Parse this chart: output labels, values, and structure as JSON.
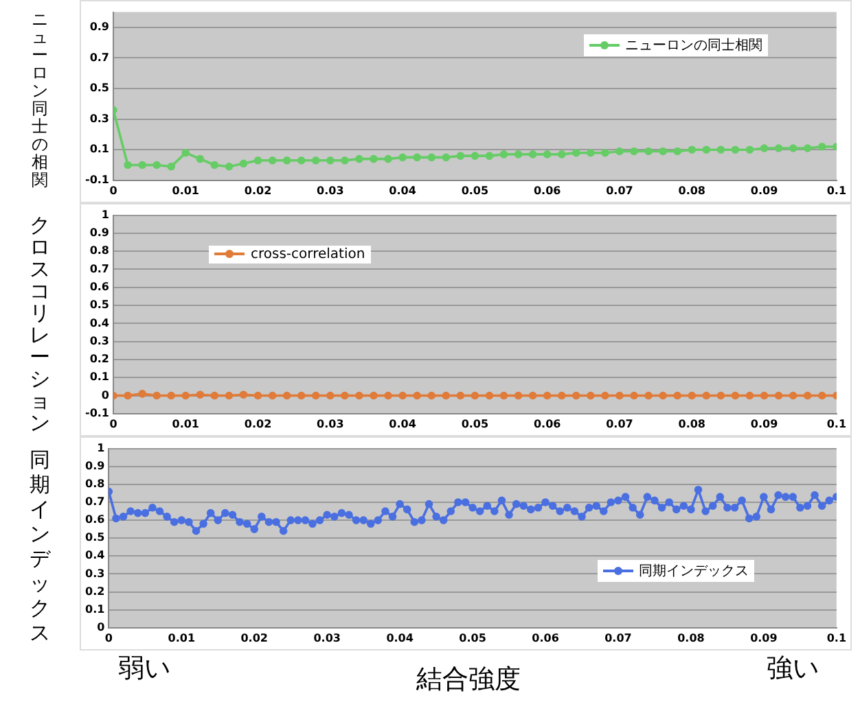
{
  "chart_data": [
    {
      "type": "line",
      "ylabel": "ニューロン同士の相関",
      "legend": "top right",
      "marker": "circle",
      "grid": "y",
      "x": [
        0,
        0.002,
        0.004,
        0.006,
        0.008,
        0.01,
        0.012,
        0.014,
        0.016,
        0.018,
        0.02,
        0.022,
        0.024,
        0.026,
        0.028,
        0.03,
        0.032,
        0.034,
        0.036,
        0.038,
        0.04,
        0.042,
        0.044,
        0.046,
        0.048,
        0.05,
        0.052,
        0.054,
        0.056,
        0.058,
        0.06,
        0.062,
        0.064,
        0.066,
        0.068,
        0.07,
        0.072,
        0.074,
        0.076,
        0.078,
        0.08,
        0.082,
        0.084,
        0.086,
        0.088,
        0.09,
        0.092,
        0.094,
        0.096,
        0.098,
        0.1
      ],
      "series": [
        {
          "name": "ニューロンの同士相関",
          "color": "#66cc66",
          "values": [
            0.36,
            0.0,
            0.0,
            0.0,
            -0.01,
            0.08,
            0.04,
            0.0,
            -0.01,
            0.01,
            0.03,
            0.03,
            0.03,
            0.03,
            0.03,
            0.03,
            0.03,
            0.04,
            0.04,
            0.04,
            0.05,
            0.05,
            0.05,
            0.05,
            0.06,
            0.06,
            0.06,
            0.07,
            0.07,
            0.07,
            0.07,
            0.07,
            0.08,
            0.08,
            0.08,
            0.09,
            0.09,
            0.09,
            0.09,
            0.09,
            0.1,
            0.1,
            0.1,
            0.1,
            0.1,
            0.11,
            0.11,
            0.11,
            0.11,
            0.12,
            0.12
          ]
        }
      ],
      "xlim": [
        0,
        0.1
      ],
      "xticks": [
        0,
        0.01,
        0.02,
        0.03,
        0.04,
        0.05,
        0.06,
        0.07,
        0.08,
        0.09,
        0.1
      ],
      "ylim": [
        -0.1,
        1.0
      ],
      "yticks": [
        -0.1,
        0.1,
        0.3,
        0.5,
        0.7,
        0.9
      ]
    },
    {
      "type": "line",
      "ylabel": "クロスコリレーション",
      "legend": "top left",
      "marker": "circle",
      "grid": "y",
      "x": [
        0,
        0.002,
        0.004,
        0.006,
        0.008,
        0.01,
        0.012,
        0.014,
        0.016,
        0.018,
        0.02,
        0.022,
        0.024,
        0.026,
        0.028,
        0.03,
        0.032,
        0.034,
        0.036,
        0.038,
        0.04,
        0.042,
        0.044,
        0.046,
        0.048,
        0.05,
        0.052,
        0.054,
        0.056,
        0.058,
        0.06,
        0.062,
        0.064,
        0.066,
        0.068,
        0.07,
        0.072,
        0.074,
        0.076,
        0.078,
        0.08,
        0.082,
        0.084,
        0.086,
        0.088,
        0.09,
        0.092,
        0.094,
        0.096,
        0.098,
        0.1
      ],
      "series": [
        {
          "name": "cross-correlation",
          "color": "#e07b39",
          "values": [
            0,
            0,
            0.01,
            0,
            0,
            0,
            0.005,
            0,
            0,
            0.005,
            0,
            0,
            0,
            0,
            0,
            0,
            0,
            0,
            0,
            0,
            0,
            0,
            0,
            0,
            0,
            0,
            0,
            0,
            0,
            0,
            0,
            0,
            0,
            0,
            0,
            0,
            0,
            0,
            0,
            0,
            0,
            0,
            0,
            0,
            0,
            0,
            0,
            0,
            0,
            0,
            0
          ]
        }
      ],
      "xlim": [
        0,
        0.1
      ],
      "xticks": [
        0,
        0.01,
        0.02,
        0.03,
        0.04,
        0.05,
        0.06,
        0.07,
        0.08,
        0.09,
        0.1
      ],
      "ylim": [
        -0.1,
        1
      ],
      "yticks": [
        -0.1,
        0,
        0.1,
        0.2,
        0.3,
        0.4,
        0.5,
        0.6,
        0.7,
        0.8,
        0.9,
        1
      ]
    },
    {
      "type": "line",
      "ylabel": "同期インデックス",
      "xlabel": "結合強度",
      "annotations": [
        "弱い",
        "強い"
      ],
      "legend": "right",
      "marker": "circle",
      "grid": "y",
      "x": [
        0,
        0.001,
        0.002,
        0.003,
        0.004,
        0.005,
        0.006,
        0.007,
        0.008,
        0.009,
        0.01,
        0.011,
        0.012,
        0.013,
        0.014,
        0.015,
        0.016,
        0.017,
        0.018,
        0.019,
        0.02,
        0.021,
        0.022,
        0.023,
        0.024,
        0.025,
        0.026,
        0.027,
        0.028,
        0.029,
        0.03,
        0.031,
        0.032,
        0.033,
        0.034,
        0.035,
        0.036,
        0.037,
        0.038,
        0.039,
        0.04,
        0.041,
        0.042,
        0.043,
        0.044,
        0.045,
        0.046,
        0.047,
        0.048,
        0.049,
        0.05,
        0.051,
        0.052,
        0.053,
        0.054,
        0.055,
        0.056,
        0.057,
        0.058,
        0.059,
        0.06,
        0.061,
        0.062,
        0.063,
        0.064,
        0.065,
        0.066,
        0.067,
        0.068,
        0.069,
        0.07,
        0.071,
        0.072,
        0.073,
        0.074,
        0.075,
        0.076,
        0.077,
        0.078,
        0.079,
        0.08,
        0.081,
        0.082,
        0.083,
        0.084,
        0.085,
        0.086,
        0.087,
        0.088,
        0.089,
        0.09,
        0.091,
        0.092,
        0.093,
        0.094,
        0.095,
        0.096,
        0.097,
        0.098,
        0.099,
        0.1
      ],
      "series": [
        {
          "name": "同期インデックス",
          "color": "#4a6fe0",
          "values": [
            0.76,
            0.61,
            0.62,
            0.65,
            0.64,
            0.64,
            0.67,
            0.65,
            0.62,
            0.59,
            0.6,
            0.59,
            0.54,
            0.58,
            0.64,
            0.6,
            0.64,
            0.63,
            0.59,
            0.58,
            0.55,
            0.62,
            0.59,
            0.59,
            0.54,
            0.6,
            0.6,
            0.6,
            0.58,
            0.6,
            0.63,
            0.62,
            0.64,
            0.63,
            0.6,
            0.6,
            0.58,
            0.6,
            0.65,
            0.62,
            0.69,
            0.66,
            0.59,
            0.6,
            0.69,
            0.62,
            0.6,
            0.65,
            0.7,
            0.7,
            0.67,
            0.65,
            0.68,
            0.65,
            0.71,
            0.63,
            0.69,
            0.68,
            0.66,
            0.67,
            0.7,
            0.68,
            0.65,
            0.67,
            0.65,
            0.62,
            0.67,
            0.68,
            0.65,
            0.7,
            0.71,
            0.73,
            0.67,
            0.63,
            0.73,
            0.71,
            0.67,
            0.7,
            0.66,
            0.68,
            0.66,
            0.77,
            0.65,
            0.68,
            0.73,
            0.67,
            0.67,
            0.71,
            0.61,
            0.62,
            0.73,
            0.66,
            0.74,
            0.73,
            0.73,
            0.67,
            0.68,
            0.74,
            0.68,
            0.71,
            0.73
          ]
        }
      ],
      "xlim": [
        0,
        0.1
      ],
      "xticks": [
        0,
        0.01,
        0.02,
        0.03,
        0.04,
        0.05,
        0.06,
        0.07,
        0.08,
        0.09,
        0.1
      ],
      "ylim": [
        0,
        1
      ],
      "yticks": [
        0,
        0.1,
        0.2,
        0.3,
        0.4,
        0.5,
        0.6,
        0.7,
        0.8,
        0.9,
        1
      ]
    }
  ]
}
